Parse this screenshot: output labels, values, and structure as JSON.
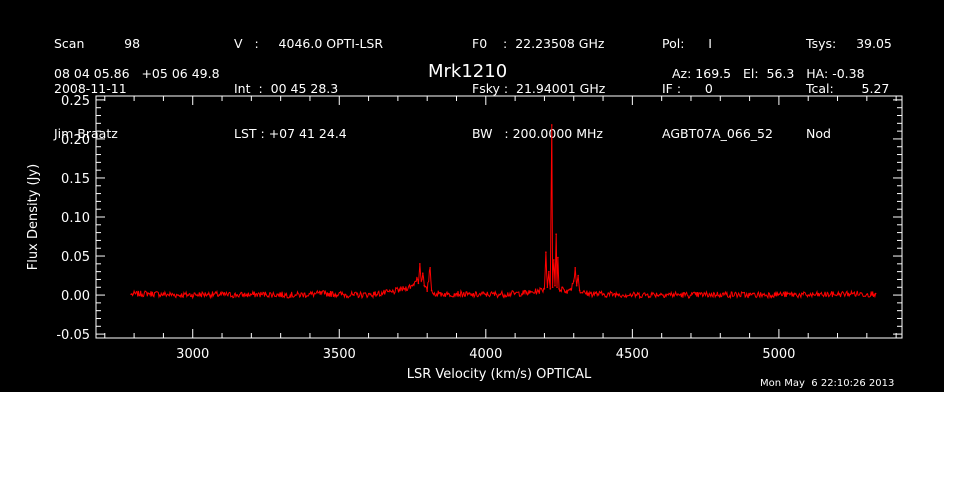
{
  "header": {
    "col1": [
      "Scan          98",
      "2008-11-11",
      "Jim Braatz"
    ],
    "col2": [
      "V   :     4046.0 OPTI-LSR",
      "Int  :  00 45 28.3",
      "LST : +07 41 24.4"
    ],
    "col3": [
      "F0    :  22.23508 GHz",
      "Fsky :  21.94001 GHz",
      "BW   : 200.0000 MHz"
    ],
    "col4": [
      "Pol:      I",
      "IF :      0",
      "AGBT07A_066_52"
    ],
    "col5": [
      "Tsys:     39.05",
      "Tcal:       5.27",
      "Nod"
    ],
    "coords": "08 04 05.86   +05 06 49.8",
    "source": "Mrk1210",
    "azelha": "Az: 169.5   El:  56.3   HA: -0.38",
    "timestamp": "Mon May  6 22:10:26 2013"
  },
  "colors": {
    "background": "#000000",
    "axes": "#ffffff",
    "series": "#ff0000"
  },
  "chart_data": {
    "type": "line",
    "title": "Mrk1210",
    "xlabel": "LSR Velocity (km/s) OPTICAL",
    "ylabel": "Flux Density (Jy)",
    "xlim": [
      2670,
      5420
    ],
    "ylim": [
      -0.055,
      0.255
    ],
    "x_ticks": [
      "3000",
      "3500",
      "4000",
      "4500",
      "5000"
    ],
    "x_tick_values": [
      3000,
      3500,
      4000,
      4500,
      5000
    ],
    "y_ticks": [
      "-0.05",
      "0.00",
      "0.05",
      "0.10",
      "0.15",
      "0.20",
      "0.25"
    ],
    "y_tick_values": [
      -0.05,
      0.0,
      0.05,
      0.1,
      0.15,
      0.2,
      0.25
    ],
    "grid": false,
    "series": [
      {
        "x": [
          2790,
          2850,
          2950,
          3050,
          3150,
          3250,
          3350,
          3450,
          3550,
          3620,
          3680,
          3720,
          3750,
          3765,
          3770,
          3775,
          3780,
          3785,
          3790,
          3800,
          3810,
          3815,
          3820,
          3840,
          3870,
          3900,
          3950,
          4000,
          4050,
          4100,
          4150,
          4180,
          4200,
          4205,
          4210,
          4215,
          4220,
          4225,
          4228,
          4232,
          4236,
          4240,
          4243,
          4246,
          4250,
          4255,
          4260,
          4270,
          4280,
          4290,
          4300,
          4305,
          4310,
          4315,
          4320,
          4330,
          4350,
          4400,
          4450,
          4500,
          4600,
          4700,
          4800,
          4900,
          5000,
          5100,
          5200,
          5250,
          5300,
          5330
        ],
        "y": [
          0.001,
          0.002,
          0.0,
          0.001,
          0.0,
          0.001,
          0.0,
          0.002,
          0.0,
          0.001,
          0.004,
          0.008,
          0.012,
          0.022,
          0.015,
          0.04,
          0.018,
          0.028,
          0.012,
          0.005,
          0.035,
          0.006,
          0.002,
          0.002,
          0.001,
          0.002,
          0.0,
          0.001,
          0.001,
          0.002,
          0.003,
          0.005,
          0.008,
          0.055,
          0.01,
          0.03,
          0.008,
          0.218,
          0.01,
          0.045,
          0.012,
          0.078,
          0.01,
          0.048,
          0.008,
          0.006,
          0.01,
          0.004,
          0.006,
          0.008,
          0.018,
          0.035,
          0.012,
          0.025,
          0.006,
          0.003,
          0.002,
          0.001,
          0.001,
          0.0,
          0.001,
          0.0,
          0.001,
          0.0,
          0.001,
          0.0,
          0.001,
          0.002,
          0.001,
          0.002
        ]
      }
    ]
  }
}
